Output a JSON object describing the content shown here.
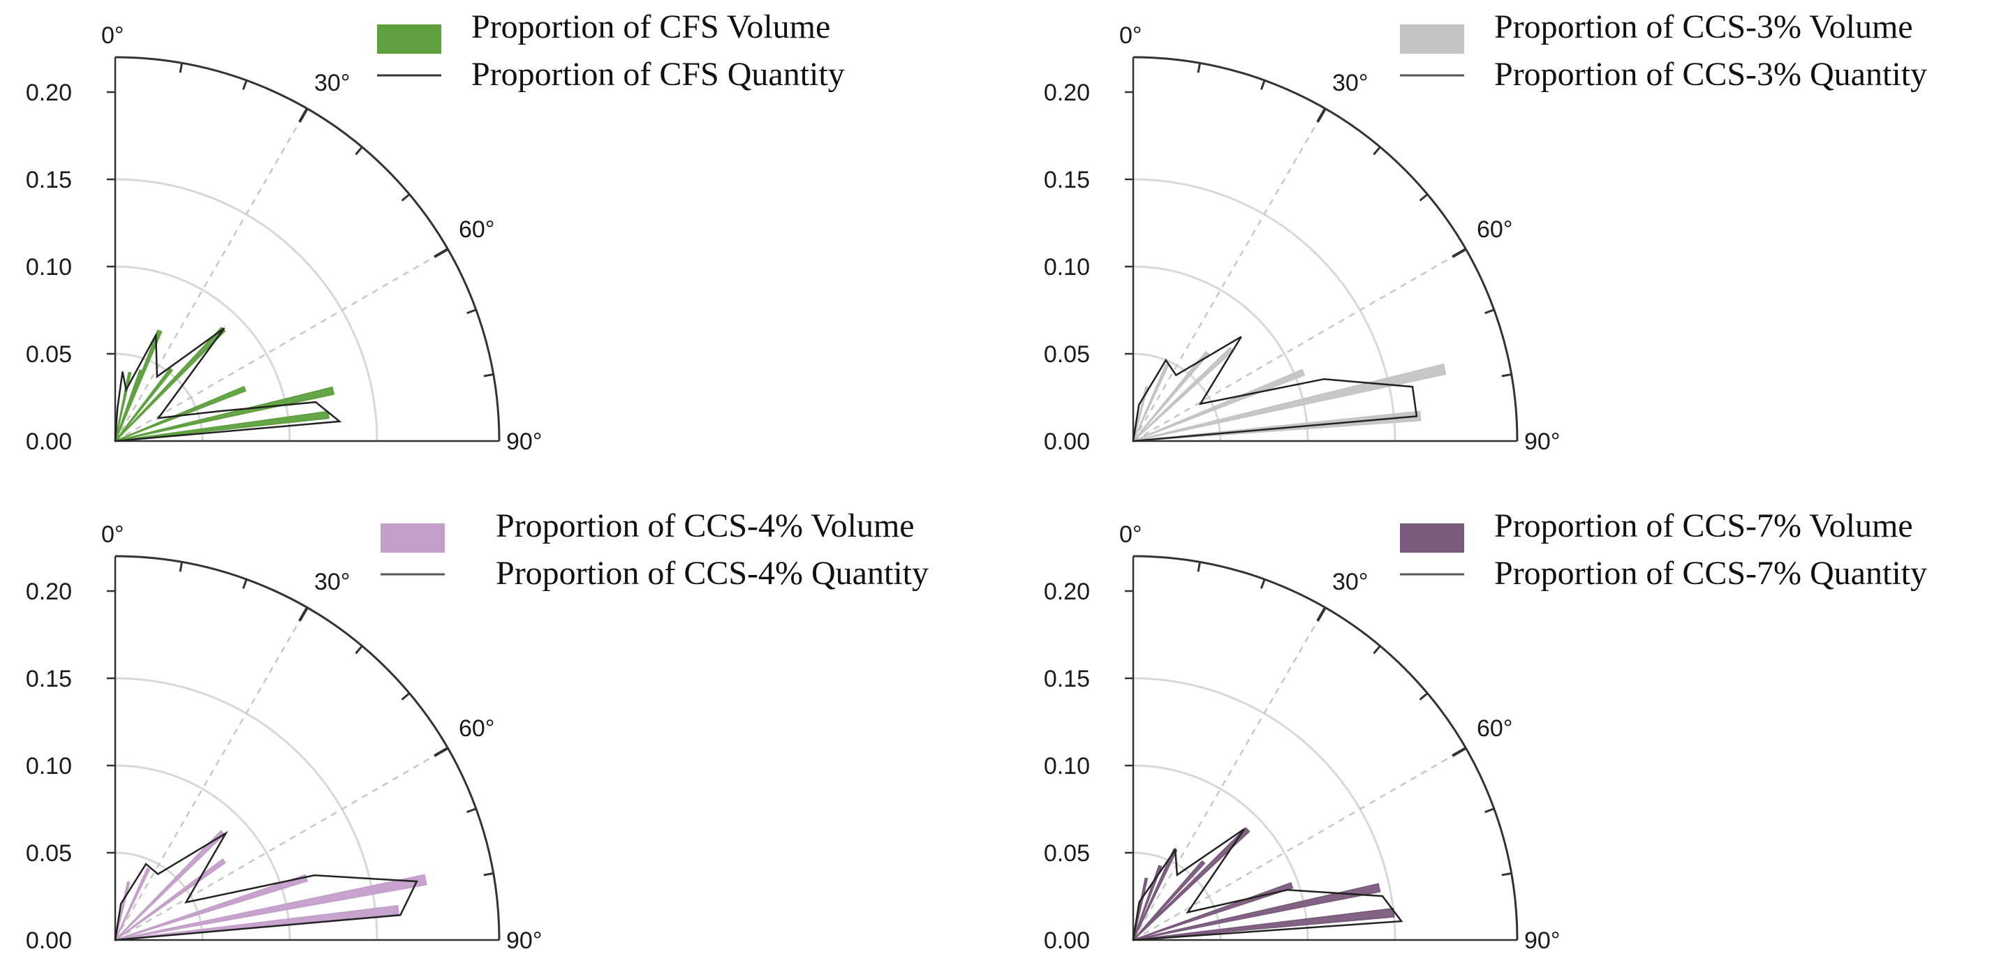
{
  "chart_data": [
    {
      "type": "polar-rose",
      "radial_ticks": [
        "0.00",
        "0.05",
        "0.10",
        "0.15",
        "0.20"
      ],
      "angle_ticks": [
        "0°",
        "30°",
        "60°",
        "90°"
      ],
      "rlim": [
        0,
        0.22
      ],
      "legend": {
        "volume_label": "Proportion of CFS Volume",
        "quantity_label": "Proportion of CFS Quantity"
      },
      "colors": {
        "volume": "#5ea03e",
        "quantity": "#222222"
      },
      "volume": [
        {
          "angle": 12,
          "value": 0.04
        },
        {
          "angle": 20,
          "value": 0.043
        },
        {
          "angle": 22,
          "value": 0.068
        },
        {
          "angle": 38,
          "value": 0.052
        },
        {
          "angle": 44,
          "value": 0.089
        },
        {
          "angle": 68,
          "value": 0.08
        },
        {
          "angle": 77,
          "value": 0.128
        },
        {
          "angle": 83,
          "value": 0.123
        }
      ],
      "quantity": [
        {
          "angle": 0,
          "value": 0.0
        },
        {
          "angle": 4,
          "value": 0.019
        },
        {
          "angle": 6,
          "value": 0.04
        },
        {
          "angle": 12,
          "value": 0.03
        },
        {
          "angle": 21,
          "value": 0.065
        },
        {
          "angle": 33,
          "value": 0.044
        },
        {
          "angle": 44,
          "value": 0.09
        },
        {
          "angle": 62,
          "value": 0.028
        },
        {
          "angle": 74,
          "value": 0.062
        },
        {
          "angle": 79,
          "value": 0.117
        },
        {
          "angle": 85,
          "value": 0.129
        },
        {
          "angle": 90,
          "value": 0.0
        }
      ]
    },
    {
      "type": "polar-rose",
      "radial_ticks": [
        "0.00",
        "0.05",
        "0.10",
        "0.15",
        "0.20"
      ],
      "angle_ticks": [
        "0°",
        "30°",
        "60°",
        "90°"
      ],
      "rlim": [
        0,
        0.22
      ],
      "legend": {
        "volume_label": "Proportion of CCS-3% Volume",
        "quantity_label": "Proportion of CCS-3% Quantity"
      },
      "colors": {
        "volume": "#c4c4c4",
        "quantity": "#222222"
      },
      "volume": [
        {
          "angle": 14,
          "value": 0.032
        },
        {
          "angle": 24,
          "value": 0.048
        },
        {
          "angle": 40,
          "value": 0.066
        },
        {
          "angle": 47,
          "value": 0.077
        },
        {
          "angle": 68,
          "value": 0.105
        },
        {
          "angle": 77,
          "value": 0.183
        },
        {
          "angle": 85,
          "value": 0.165
        }
      ],
      "quantity": [
        {
          "angle": 0,
          "value": 0.0
        },
        {
          "angle": 9,
          "value": 0.021
        },
        {
          "angle": 22,
          "value": 0.05
        },
        {
          "angle": 33,
          "value": 0.045
        },
        {
          "angle": 46,
          "value": 0.086
        },
        {
          "angle": 61,
          "value": 0.044
        },
        {
          "angle": 72,
          "value": 0.115
        },
        {
          "angle": 79,
          "value": 0.163
        },
        {
          "angle": 85,
          "value": 0.163
        },
        {
          "angle": 90,
          "value": 0.0
        }
      ]
    },
    {
      "type": "polar-rose",
      "radial_ticks": [
        "0.00",
        "0.05",
        "0.10",
        "0.15",
        "0.20"
      ],
      "angle_ticks": [
        "0°",
        "30°",
        "60°",
        "90°"
      ],
      "rlim": [
        0,
        0.22
      ],
      "legend": {
        "volume_label": "Proportion of CCS-4% Volume",
        "quantity_label": "Proportion of CCS-4% Quantity"
      },
      "colors": {
        "volume": "#c39fca",
        "quantity": "#222222"
      },
      "volume": [
        {
          "angle": 13,
          "value": 0.034
        },
        {
          "angle": 25,
          "value": 0.045
        },
        {
          "angle": 45,
          "value": 0.087
        },
        {
          "angle": 54,
          "value": 0.077
        },
        {
          "angle": 72,
          "value": 0.115
        },
        {
          "angle": 79,
          "value": 0.181
        },
        {
          "angle": 84,
          "value": 0.163
        }
      ],
      "quantity": [
        {
          "angle": 0,
          "value": 0.0
        },
        {
          "angle": 9,
          "value": 0.021
        },
        {
          "angle": 22,
          "value": 0.047
        },
        {
          "angle": 33,
          "value": 0.045
        },
        {
          "angle": 46,
          "value": 0.088
        },
        {
          "angle": 62,
          "value": 0.046
        },
        {
          "angle": 72,
          "value": 0.12
        },
        {
          "angle": 79,
          "value": 0.176
        },
        {
          "angle": 85,
          "value": 0.164
        },
        {
          "angle": 90,
          "value": 0.0
        }
      ]
    },
    {
      "type": "polar-rose",
      "radial_ticks": [
        "0.00",
        "0.05",
        "0.10",
        "0.15",
        "0.20"
      ],
      "angle_ticks": [
        "0°",
        "30°",
        "60°",
        "90°"
      ],
      "rlim": [
        0,
        0.22
      ],
      "legend": {
        "volume_label": "Proportion of CCS-7% Volume",
        "quantity_label": "Proportion of CCS-7% Quantity"
      },
      "colors": {
        "volume": "#7b5b7d",
        "quantity": "#222222"
      },
      "volume": [
        {
          "angle": 12,
          "value": 0.036
        },
        {
          "angle": 20,
          "value": 0.045
        },
        {
          "angle": 25,
          "value": 0.057
        },
        {
          "angle": 42,
          "value": 0.06
        },
        {
          "angle": 46,
          "value": 0.091
        },
        {
          "angle": 71,
          "value": 0.096
        },
        {
          "angle": 78,
          "value": 0.144
        },
        {
          "angle": 84,
          "value": 0.15
        }
      ],
      "quantity": [
        {
          "angle": 0,
          "value": 0.0
        },
        {
          "angle": 9,
          "value": 0.022
        },
        {
          "angle": 25,
          "value": 0.057
        },
        {
          "angle": 34,
          "value": 0.045
        },
        {
          "angle": 45,
          "value": 0.09
        },
        {
          "angle": 63,
          "value": 0.035
        },
        {
          "angle": 72,
          "value": 0.093
        },
        {
          "angle": 80,
          "value": 0.145
        },
        {
          "angle": 86,
          "value": 0.154
        },
        {
          "angle": 90,
          "value": 0.0
        }
      ]
    }
  ]
}
